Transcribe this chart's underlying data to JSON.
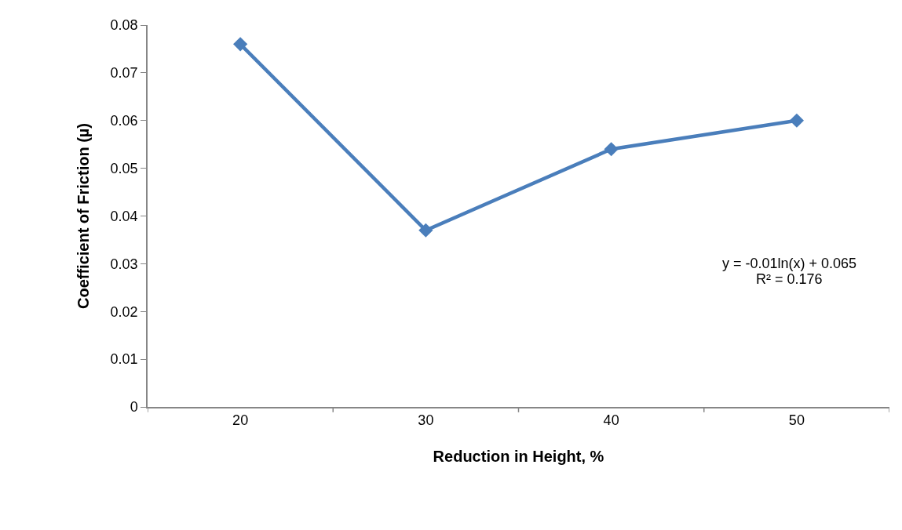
{
  "chart_data": {
    "type": "line",
    "xlabel": "Reduction in Height, %",
    "ylabel": "Coefficient of Friction (µ)",
    "categories": [
      "20",
      "30",
      "40",
      "50"
    ],
    "series": [
      {
        "color": "#4a7ebb",
        "values": [
          0.076,
          0.037,
          0.054,
          0.06
        ]
      }
    ],
    "ylim": [
      0,
      0.08
    ],
    "yticks": [
      0,
      0.01,
      0.02,
      0.03,
      0.04,
      0.05,
      0.06,
      0.07,
      0.08
    ],
    "grid": false,
    "legend": false,
    "marker": "diamond",
    "line_style": "solid",
    "annotations": [
      "y = -0.01ln(x) + 0.065",
      "R² = 0.176"
    ]
  }
}
